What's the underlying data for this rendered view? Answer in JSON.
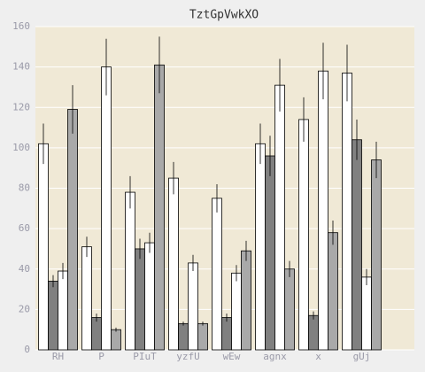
{
  "chart_data": {
    "type": "bar",
    "title": "TztGpVwkXO",
    "categories": [
      "RH",
      "P",
      "PIuT",
      "yzfU",
      "wEw",
      "agnx",
      "x",
      "gUj"
    ],
    "series": [
      {
        "color": "#ffffff",
        "values": [
          102,
          51,
          78,
          85,
          75,
          102,
          114,
          137
        ],
        "errors": [
          10,
          5,
          8,
          8,
          7,
          10,
          11,
          14
        ]
      },
      {
        "color": "#808080",
        "values": [
          34,
          16,
          50,
          13,
          16,
          96,
          17,
          104
        ],
        "errors": [
          3,
          2,
          5,
          1,
          2,
          10,
          2,
          10
        ]
      },
      {
        "color": "#ffffff",
        "values": [
          39,
          140,
          53,
          43,
          38,
          131,
          138,
          36
        ],
        "errors": [
          4,
          14,
          5,
          4,
          4,
          13,
          14,
          4
        ]
      },
      {
        "color": "#a9a9a9",
        "values": [
          119,
          10,
          141,
          13,
          49,
          40,
          58,
          94
        ],
        "errors": [
          12,
          1,
          14,
          1,
          5,
          4,
          6,
          9
        ]
      }
    ],
    "ylim": [
      0,
      160
    ],
    "yticks": [
      0,
      20,
      40,
      60,
      80,
      100,
      120,
      140,
      160
    ],
    "grid": true,
    "plot_background": "#f0e9d6"
  }
}
